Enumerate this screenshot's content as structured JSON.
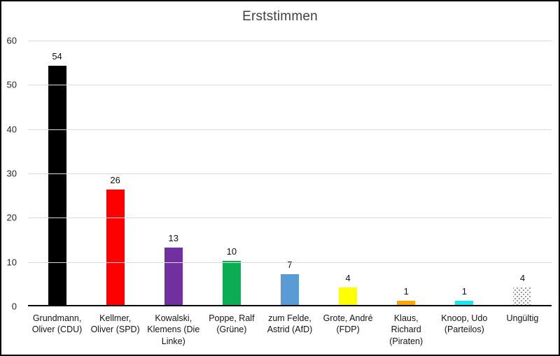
{
  "chart_data": {
    "type": "bar",
    "title": "Erststimmen",
    "categories": [
      "Grundmann, Oliver (CDU)",
      "Kellmer, Oliver (SPD)",
      "Kowalski, Klemens (Die Linke)",
      "Poppe, Ralf (Grüne)",
      "zum Felde, Astrid (AfD)",
      "Grote, André (FDP)",
      "Klaus, Richard (Piraten)",
      "Knoop, Udo (Parteilos)",
      "Ungültig"
    ],
    "values": [
      54,
      26,
      13,
      10,
      7,
      4,
      1,
      1,
      4
    ],
    "bar_colors": [
      "#000000",
      "#FF0000",
      "#7030A0",
      "#0CAC52",
      "#5B9BD5",
      "#FFFF00",
      "#FFA500",
      "#1CE6EE",
      "pattern-dotted"
    ],
    "data_labels": [
      "54",
      "26",
      "13",
      "10",
      "7",
      "4",
      "1",
      "1",
      "4"
    ],
    "xlabel": "",
    "ylabel": "",
    "ylim": [
      0,
      60
    ],
    "yticks": [
      0,
      10,
      20,
      30,
      40,
      50,
      60
    ],
    "grid": "horizontal",
    "legend": "none",
    "styles": {
      "gridline_color": "#d9d9d9",
      "axis_line_color": "#000000",
      "title_color": "#3f3f3f",
      "label_color": "#141414",
      "background": "#ffffff",
      "border_color": "#000000"
    }
  }
}
